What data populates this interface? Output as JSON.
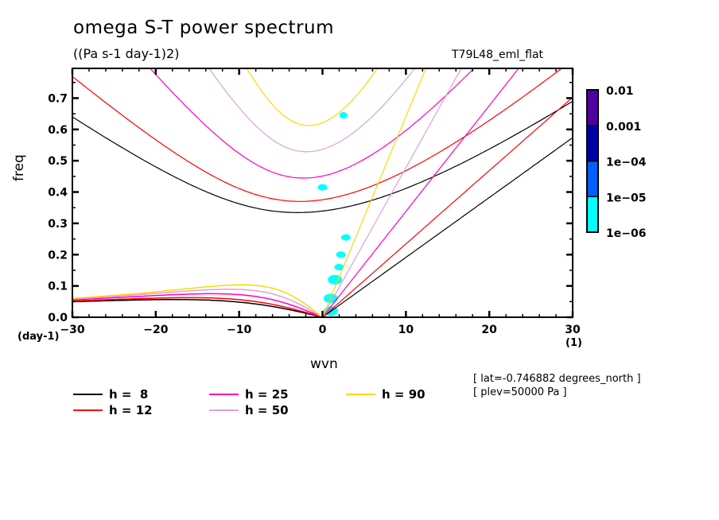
{
  "chart_data": {
    "type": "line",
    "title": "omega S-T power spectrum",
    "subtitle": "((Pa s-1 day-1)2)",
    "run_label": "T79L48_eml_flat",
    "xlabel": "wvn",
    "ylabel": "freq",
    "x_units": "(1)",
    "y_units": "(day-1)",
    "xlim": [
      -30,
      30
    ],
    "ylim": [
      0,
      0.795
    ],
    "x_ticks": [
      -30,
      -20,
      -10,
      0,
      10,
      20,
      30
    ],
    "x_tick_labels": [
      "-30",
      "-20",
      "-10",
      "0",
      "10",
      "20",
      "30"
    ],
    "y_ticks": [
      0.0,
      0.1,
      0.2,
      0.3,
      0.4,
      0.5,
      0.6,
      0.7
    ],
    "y_tick_labels": [
      "0.0",
      "0.1",
      "0.2",
      "0.3",
      "0.4",
      "0.5",
      "0.6",
      "0.7"
    ],
    "grid": false,
    "series": [
      {
        "name": "h =  8",
        "equivalent_depth": 8,
        "color": "#000000",
        "ig_n1_min_freq": 0.335,
        "kelvin_freq_at_wvn30": 0.57,
        "mrg_peak_freq": 0.055
      },
      {
        "name": "h = 12",
        "equivalent_depth": 12,
        "color": "#ff0000",
        "ig_n1_min_freq": 0.37,
        "kelvin_freq_at_wvn30": 0.69,
        "mrg_peak_freq": 0.06
      },
      {
        "name": "h = 25",
        "equivalent_depth": 25,
        "color": "#ff00c0",
        "ig_n1_min_freq": 0.445,
        "mrg_peak_freq": 0.07
      },
      {
        "name": "h = 50",
        "equivalent_depth": 50,
        "color": "#dda0dd",
        "ig_n1_min_freq": 0.53,
        "mrg_peak_freq": 0.085
      },
      {
        "name": "h = 90",
        "equivalent_depth": 90,
        "color": "#ffd700",
        "ig_n1_min_freq": 0.615,
        "mrg_peak_freq": 0.105
      }
    ],
    "contour_fill": {
      "variable": "omega power",
      "levels": [
        1e-06,
        1e-05,
        0.0001,
        0.001,
        0.01
      ],
      "level_labels": [
        "1e-06",
        "1e-05",
        "1e-04",
        "0.001",
        "0.01"
      ],
      "colors": [
        "#00ffff",
        "#0060ff",
        "#0000a8",
        "#5000a0"
      ],
      "visible_patches": [
        {
          "wvn": 2.5,
          "freq": 0.645,
          "level": "1e-06"
        },
        {
          "wvn": 0.0,
          "freq": 0.415,
          "level": "1e-06"
        },
        {
          "wvn": 2.8,
          "freq": 0.255,
          "level": "1e-06"
        },
        {
          "wvn": 2.2,
          "freq": 0.2,
          "level": "1e-06"
        },
        {
          "wvn": 2.0,
          "freq": 0.16,
          "level": "1e-06"
        },
        {
          "wvn": 1.5,
          "freq": 0.12,
          "level": "1e-06"
        },
        {
          "wvn": 1.0,
          "freq": 0.06,
          "level": "1e-06"
        },
        {
          "wvn": 1.0,
          "freq": 0.02,
          "level": "1e-06"
        }
      ]
    },
    "legend": {
      "placement": "bottom",
      "entries": [
        "h =  8",
        "h = 12",
        "h = 25",
        "h = 50",
        "h = 90"
      ]
    },
    "annotations": [
      "[ lat=-0.746882 degrees_north ]",
      "[ plev=50000 Pa ]"
    ]
  }
}
